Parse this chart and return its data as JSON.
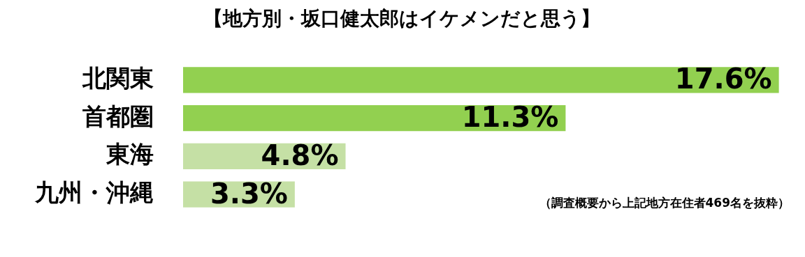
{
  "chart_data": {
    "type": "bar",
    "orientation": "horizontal",
    "title": "【地方別・坂口健太郎はイケメンだと思う】",
    "categories": [
      "北関東",
      "首都圏",
      "東海",
      "九州・沖縄"
    ],
    "values": [
      17.6,
      11.3,
      4.8,
      3.3
    ],
    "colors": [
      "#92d050",
      "#92d050",
      "#c5e0a5",
      "#c5e0a5"
    ],
    "value_labels": [
      "17.6%",
      "11.3%",
      "4.8%",
      "3.3%"
    ],
    "tick_labels": "y",
    "grid": false,
    "legend": false,
    "annotations": [
      "（調査概要から上記地方在住者469名を抜粋）"
    ]
  }
}
